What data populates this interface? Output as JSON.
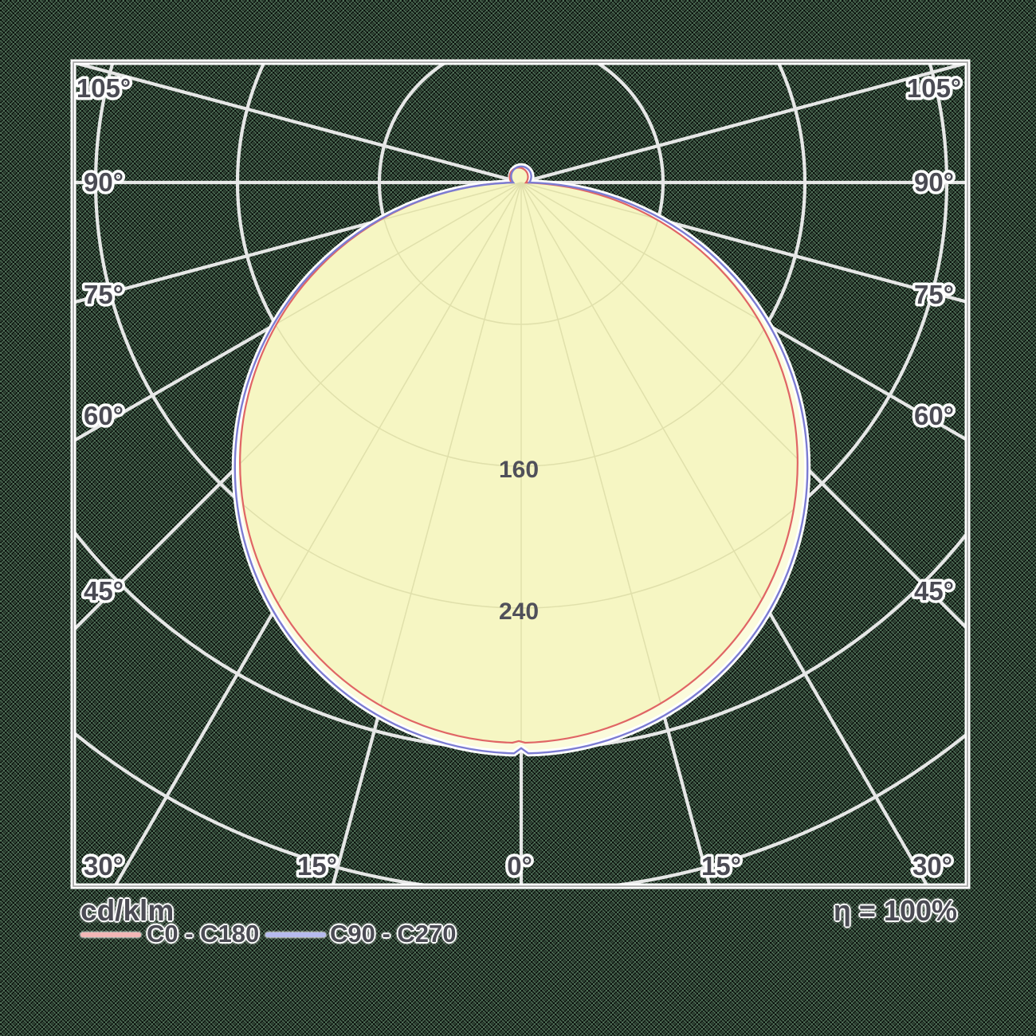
{
  "figure": {
    "unit_label": "cd/klm",
    "efficiency_label": "η = 100%"
  },
  "legend": {
    "items": [
      {
        "label": "C0 - C180",
        "swatch_color": "#f2b6b6"
      },
      {
        "label": "C90 - C270",
        "swatch_color": "#b6baee"
      }
    ]
  },
  "colors": {
    "background_green": "#4e6e56",
    "background_black": "#0b100c",
    "grid_white": "#ededed",
    "frame_gray": "#a8a8a8",
    "fill_yellow": "#f6f6c3",
    "fill_band": "#fbfbdc",
    "inner_grid": "#e0e0ab",
    "curve_c0_c180": "#e06565",
    "curve_c90_c270": "#7c7cd2",
    "label_text": "#4b4b54"
  },
  "chart_data": {
    "type": "polar-photometric",
    "unit": "cd/klm",
    "efficiency": "η = 100%",
    "gamma_deg": [
      0,
      15,
      30,
      45,
      60,
      75,
      90
    ],
    "series": [
      {
        "name": "C0 - C180",
        "values_cd_per_klm": [
          316,
          305,
          274,
          223,
          158,
          82,
          2
        ],
        "spike_at_180_deg": 9,
        "notch_at_0_deg": 1
      },
      {
        "name": "C90 - C270",
        "values_cd_per_klm": [
          322,
          311,
          279,
          228,
          161,
          83,
          2
        ],
        "spike_at_180_deg": 10,
        "notch_at_0_deg": 3
      }
    ],
    "ring_values_cd_per_klm": [
      80,
      160,
      240,
      320,
      400
    ],
    "ring_labels_shown": [
      "160",
      "240"
    ],
    "ray_angles_deg": [
      0,
      15,
      30,
      45,
      60,
      75,
      90,
      105
    ],
    "side_angle_labels": [
      "105°",
      "90°",
      "75°",
      "60°",
      "45°"
    ],
    "bottom_angle_labels": [
      "30°",
      "15°",
      "0°",
      "15°",
      "30°"
    ],
    "legend_position": "bottom-left",
    "grid": true
  }
}
